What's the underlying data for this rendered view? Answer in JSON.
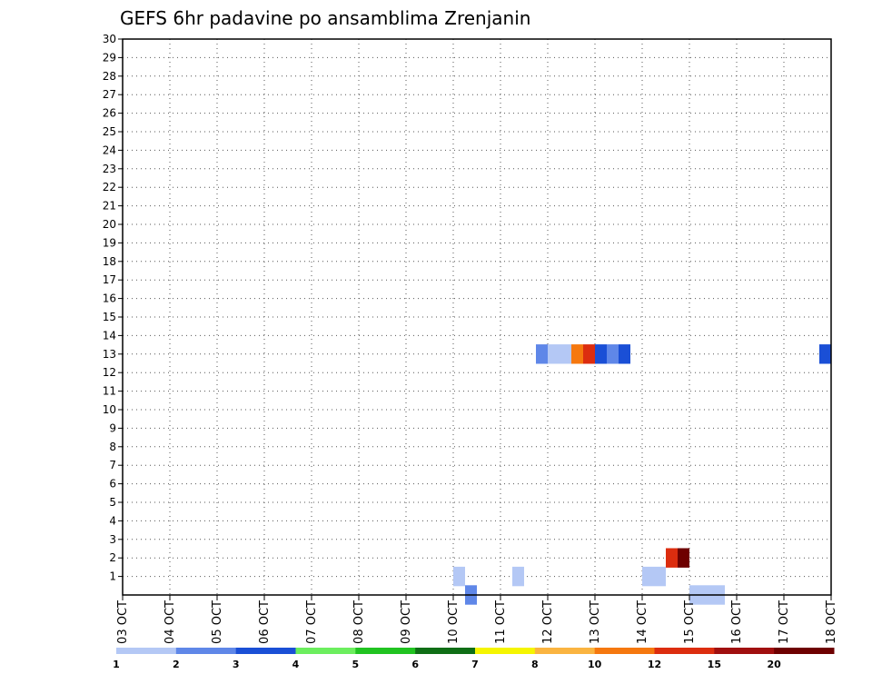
{
  "chart_data": {
    "type": "heatmap",
    "title": "GEFS 6hr padavine po ansamblima Zrenjanin",
    "xlabel": "",
    "ylabel": "",
    "x_ticks": [
      "03 OCT",
      "04 OCT",
      "05 OCT",
      "06 OCT",
      "07 OCT",
      "08 OCT",
      "09 OCT",
      "10 OCT",
      "11 OCT",
      "12 OCT",
      "13 OCT",
      "14 OCT",
      "15 OCT",
      "16 OCT",
      "17 OCT",
      "18 OCT"
    ],
    "y_ticks": [
      "1",
      "2",
      "3",
      "4",
      "5",
      "6",
      "7",
      "8",
      "9",
      "10",
      "11",
      "12",
      "13",
      "14",
      "15",
      "16",
      "17",
      "18",
      "19",
      "20",
      "21",
      "22",
      "23",
      "24",
      "25",
      "26",
      "27",
      "28",
      "29",
      "30"
    ],
    "xlim": [
      0,
      15
    ],
    "ylim": [
      0,
      30
    ],
    "grid": true,
    "x_unit_note": "days since 03 OCT 00z, 6-hour steps (0.25 day)",
    "legend": {
      "labels": [
        "1",
        "2",
        "3",
        "4",
        "5",
        "6",
        "7",
        "8",
        "10",
        "12",
        "15",
        "20"
      ],
      "colors": [
        "#b4c8f5",
        "#5f87e8",
        "#1a4fd6",
        "#6cee5e",
        "#21c321",
        "#0f6e16",
        "#f5f500",
        "#fab441",
        "#f5780f",
        "#dc2d0f",
        "#a00f0f",
        "#6e0000"
      ]
    },
    "cells": [
      {
        "t": 7.25,
        "m": 0,
        "v": 2
      },
      {
        "t": 7.0,
        "m": 1,
        "v": 1
      },
      {
        "t": 8.25,
        "m": 1,
        "v": 1
      },
      {
        "t": 11.0,
        "m": 1,
        "v": 1
      },
      {
        "t": 11.25,
        "m": 1,
        "v": 1
      },
      {
        "t": 11.5,
        "m": 2,
        "v": 12
      },
      {
        "t": 11.75,
        "m": 2,
        "v": 20
      },
      {
        "t": 12.0,
        "m": 0,
        "v": 1
      },
      {
        "t": 12.25,
        "m": 0,
        "v": 1
      },
      {
        "t": 12.5,
        "m": 0,
        "v": 1
      },
      {
        "t": 8.75,
        "m": 13,
        "v": 2
      },
      {
        "t": 9.0,
        "m": 13,
        "v": 1
      },
      {
        "t": 9.25,
        "m": 13,
        "v": 1
      },
      {
        "t": 9.5,
        "m": 13,
        "v": 10
      },
      {
        "t": 9.75,
        "m": 13,
        "v": 12
      },
      {
        "t": 10.0,
        "m": 13,
        "v": 3
      },
      {
        "t": 10.25,
        "m": 13,
        "v": 2
      },
      {
        "t": 10.5,
        "m": 13,
        "v": 3
      },
      {
        "t": 14.75,
        "m": 13,
        "v": 3
      }
    ]
  }
}
